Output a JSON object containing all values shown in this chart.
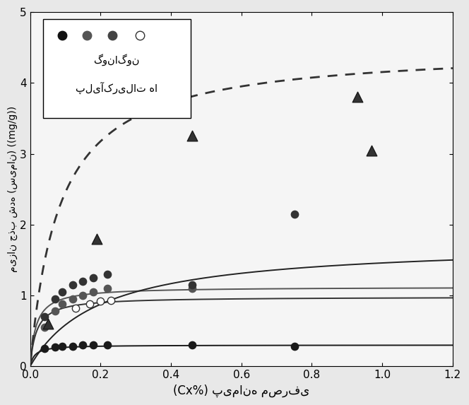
{
  "xlabel": "(Cx%) پیمانه مصرفی",
  "ylabel": "میزان جذب شده (سیمان) ((mg/g))",
  "xlim": [
    0,
    1.2
  ],
  "ylim": [
    0,
    5
  ],
  "xticks": [
    0,
    0.2,
    0.4,
    0.6,
    0.8,
    1.0,
    1.2
  ],
  "yticks": [
    0,
    1,
    2,
    3,
    4,
    5
  ],
  "legend_text1": "گوناگون",
  "legend_text2": "پلیآکریلات ها",
  "scatter_series": [
    {
      "x": [
        0.04,
        0.07,
        0.09,
        0.12,
        0.15,
        0.18,
        0.22,
        0.46,
        0.75
      ],
      "y": [
        0.25,
        0.27,
        0.28,
        0.28,
        0.3,
        0.3,
        0.3,
        0.3,
        0.28
      ],
      "color": "#1a1a1a",
      "marker": "o",
      "size": 55,
      "edge": "#1a1a1a"
    },
    {
      "x": [
        0.04,
        0.07,
        0.09,
        0.12,
        0.15,
        0.18,
        0.22,
        0.46
      ],
      "y": [
        0.55,
        0.78,
        0.88,
        0.95,
        1.0,
        1.05,
        1.1,
        1.1
      ],
      "color": "#555555",
      "marker": "o",
      "size": 55,
      "edge": "#555555"
    },
    {
      "x": [
        0.04,
        0.07,
        0.09,
        0.12,
        0.15,
        0.18,
        0.22,
        0.46,
        0.75
      ],
      "y": [
        0.7,
        0.95,
        1.05,
        1.15,
        1.2,
        1.25,
        1.3,
        1.15,
        2.15
      ],
      "color": "#333333",
      "marker": "o",
      "size": 55,
      "edge": "#333333"
    },
    {
      "x": [
        0.13,
        0.17,
        0.2,
        0.23
      ],
      "y": [
        0.82,
        0.88,
        0.92,
        0.93
      ],
      "color": "#ffffff",
      "marker": "o",
      "size": 55,
      "edge": "#333333"
    },
    {
      "x": [
        0.05,
        0.19,
        0.46,
        0.93,
        0.97
      ],
      "y": [
        0.6,
        1.8,
        3.25,
        3.8,
        3.05
      ],
      "color": "#333333",
      "marker": "^",
      "size": 110,
      "edge": "#1a1a1a"
    }
  ],
  "langmuir_curves": [
    {
      "qmax": 0.3,
      "b": 80,
      "color": "#1a1a1a",
      "lw": 1.4,
      "style": "-"
    },
    {
      "qmax": 1.12,
      "b": 60,
      "color": "#555555",
      "lw": 1.4,
      "style": "-"
    },
    {
      "qmax": 0.98,
      "b": 55,
      "color": "#333333",
      "lw": 1.4,
      "style": "-"
    },
    {
      "qmax": 1.75,
      "b": 5,
      "color": "#222222",
      "lw": 1.4,
      "style": "-"
    }
  ],
  "dashed_curve_params": {
    "qmax": 4.5,
    "b": 12,
    "color": "#333333",
    "lw": 2.0
  },
  "background_color": "#e8e8e8",
  "plot_bg_color": "#f5f5f5"
}
